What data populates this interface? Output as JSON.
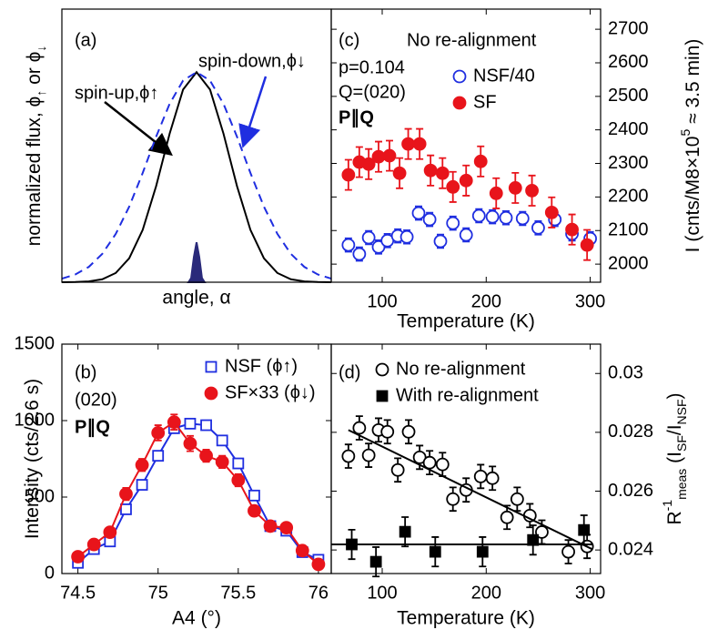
{
  "chart_data": [
    {
      "type": "line",
      "xlabel": "angle, α",
      "ylabel": [
        "normalized flux, ϕ",
        "↑",
        " or ϕ",
        "↓"
      ],
      "ylabel_style": [
        "n",
        "sub",
        "n",
        "sub"
      ],
      "annotations": [
        {
          "text": "(a)"
        },
        {
          "text": "spin-up,ϕ↑"
        },
        {
          "text": "spin-down,ϕ↓"
        }
      ],
      "xlim": [
        -1,
        1
      ],
      "ylim": [
        0,
        1.3
      ],
      "yaxis_side": "left",
      "series": [
        {
          "color": "#000000",
          "line": "solid",
          "marker": "none",
          "x": [
            -1,
            -0.9,
            -0.8,
            -0.7,
            -0.6,
            -0.5,
            -0.4,
            -0.3,
            -0.2,
            -0.1,
            0,
            0.1,
            0.2,
            0.3,
            0.4,
            0.5,
            0.6,
            0.7,
            0.8,
            0.9,
            1
          ],
          "values": [
            0,
            0.001,
            0.004,
            0.014,
            0.044,
            0.114,
            0.249,
            0.458,
            0.707,
            0.917,
            1,
            0.917,
            0.707,
            0.458,
            0.249,
            0.114,
            0.044,
            0.014,
            0.004,
            0.001,
            0
          ]
        },
        {
          "color": "#1f2ee0",
          "line": "dashed",
          "marker": "none",
          "x": [
            -1,
            -0.9,
            -0.8,
            -0.7,
            -0.6,
            -0.5,
            -0.4,
            -0.3,
            -0.2,
            -0.1,
            0,
            0.1,
            0.2,
            0.3,
            0.4,
            0.5,
            0.6,
            0.7,
            0.8,
            0.9,
            1
          ],
          "values": [
            0.017,
            0.037,
            0.073,
            0.135,
            0.23,
            0.36,
            0.52,
            0.693,
            0.849,
            0.96,
            1,
            0.96,
            0.849,
            0.693,
            0.52,
            0.36,
            0.23,
            0.135,
            0.073,
            0.037,
            0.017
          ]
        },
        {
          "color": "#2a2a7a",
          "line": "solid",
          "marker": "none",
          "fill": true,
          "x": [
            -0.06,
            -0.04,
            -0.02,
            0,
            0.02,
            0.04,
            0.06
          ],
          "values": [
            0,
            0.02,
            0.12,
            0.19,
            0.12,
            0.02,
            0
          ]
        }
      ]
    },
    {
      "type": "line",
      "xlabel": "A4 (°)",
      "ylabel": [
        "Intensity (cts/2.6 s)"
      ],
      "ylabel_style": [
        "n"
      ],
      "annotations": [
        {
          "text": "(b)"
        },
        {
          "text": "(020)"
        },
        {
          "text": "P∥Q",
          "bold": true
        }
      ],
      "xlim": [
        74.4,
        76.08
      ],
      "ylim": [
        0,
        1500
      ],
      "xticks": [
        74.5,
        75,
        75.5,
        76
      ],
      "yticks": [
        0,
        500,
        1000,
        1500
      ],
      "yaxis_side": "left",
      "series": [
        {
          "name": "NSF (ϕ↑)",
          "color": "#1f2ee0",
          "line": "solid",
          "marker": "square",
          "filled": false,
          "x": [
            74.5,
            74.6,
            74.7,
            74.8,
            74.9,
            75,
            75.1,
            75.2,
            75.3,
            75.4,
            75.5,
            75.6,
            75.7,
            75.8,
            75.9,
            76
          ],
          "values": [
            70,
            160,
            210,
            420,
            580,
            770,
            950,
            980,
            970,
            870,
            720,
            510,
            310,
            280,
            140,
            90
          ]
        },
        {
          "name": "SF×33 (ϕ↓)",
          "color": "#e8141b",
          "line": "solid",
          "marker": "circle",
          "filled": true,
          "x": [
            74.5,
            74.6,
            74.7,
            74.8,
            74.9,
            75,
            75.1,
            75.2,
            75.3,
            75.4,
            75.5,
            75.6,
            75.7,
            75.8,
            75.9,
            76
          ],
          "values": [
            110,
            190,
            270,
            520,
            710,
            920,
            990,
            850,
            770,
            730,
            610,
            410,
            310,
            300,
            150,
            60
          ],
          "errors": [
            30,
            30,
            30,
            40,
            40,
            50,
            50,
            50,
            40,
            40,
            40,
            30,
            30,
            30,
            30,
            30
          ]
        }
      ]
    },
    {
      "type": "scatter",
      "xlabel": "Temperature (K)",
      "ylabel": [
        "I (cnts/M8×10",
        "5",
        " ≈ 3.5 min)"
      ],
      "ylabel_style": [
        "n",
        "sup",
        "n"
      ],
      "annotations": [
        {
          "text": "(c)"
        },
        {
          "text": "No re-alignment"
        },
        {
          "text": "p=0.104"
        },
        {
          "text": "Q=(020)"
        },
        {
          "text": "P∥Q",
          "bold": true
        }
      ],
      "xlim": [
        51,
        310
      ],
      "ylim": [
        1946,
        2760
      ],
      "xticks": [
        100,
        200,
        300
      ],
      "yticks": [
        2000,
        2100,
        2200,
        2300,
        2400,
        2500,
        2600,
        2700
      ],
      "yaxis_side": "right",
      "series": [
        {
          "name": "NSF/40",
          "color": "#1f2ee0",
          "line": "none",
          "marker": "circle",
          "filled": false,
          "x": [
            67.5,
            78,
            87,
            96.5,
            105,
            115,
            123.7,
            135,
            145.6,
            156,
            168,
            180.7,
            193,
            206,
            219,
            235,
            250,
            266,
            282.5,
            300
          ],
          "values": [
            2057,
            2030,
            2079,
            2051,
            2070,
            2084,
            2081,
            2152,
            2133,
            2068,
            2122,
            2087,
            2144,
            2141,
            2138,
            2136,
            2108,
            2133,
            2090,
            2076
          ],
          "errors": [
            20,
            20,
            20,
            20,
            20,
            20,
            20,
            20,
            20,
            20,
            20,
            20,
            20,
            20,
            20,
            20,
            20,
            20,
            20,
            20
          ]
        },
        {
          "name": "SF",
          "color": "#e8141b",
          "line": "none",
          "marker": "circle",
          "filled": true,
          "x": [
            67.5,
            78,
            87,
            96.5,
            107,
            116.7,
            125,
            136,
            146.5,
            158,
            168,
            180.7,
            194.7,
            209.6,
            228,
            244,
            263,
            282.5,
            297
          ],
          "values": [
            2266,
            2304,
            2298,
            2320,
            2323,
            2271,
            2358,
            2358,
            2279,
            2271,
            2230,
            2249,
            2306,
            2211,
            2227,
            2219,
            2154,
            2103,
            2057
          ],
          "errors": [
            45,
            45,
            45,
            45,
            45,
            45,
            45,
            45,
            45,
            45,
            45,
            45,
            45,
            45,
            45,
            45,
            45,
            45,
            45
          ]
        }
      ]
    },
    {
      "type": "scatter",
      "xlabel": "Temperature (K)",
      "ylabel": [
        "R",
        "-1",
        "meas",
        " (I",
        "SF",
        "/I",
        "NSF",
        ")"
      ],
      "ylabel_style": [
        "n",
        "sup",
        "sub",
        "n",
        "sub",
        "n",
        "sub",
        "n"
      ],
      "annotations": [
        {
          "text": "(d)"
        }
      ],
      "xlim": [
        51,
        310
      ],
      "ylim": [
        0.0232,
        0.031
      ],
      "xticks": [
        100,
        200,
        300
      ],
      "yticks": [
        0.024,
        0.026,
        0.028,
        0.03
      ],
      "yaxis_side": "right",
      "series": [
        {
          "name": "No re-alignment",
          "color": "#000000",
          "line": "none",
          "marker": "circle",
          "filled": false,
          "x": [
            67.5,
            78,
            87,
            96.5,
            105,
            115,
            125.4,
            136,
            145.6,
            158,
            168,
            180.7,
            194.7,
            206,
            220,
            229.8,
            242,
            253.5,
            279,
            297
          ],
          "values": [
            0.02719,
            0.02815,
            0.02722,
            0.02808,
            0.02802,
            0.02672,
            0.02802,
            0.02715,
            0.02697,
            0.02691,
            0.02573,
            0.02604,
            0.0265,
            0.02644,
            0.02511,
            0.02573,
            0.02517,
            0.02461,
            0.02394,
            0.02412
          ],
          "errors": [
            0.0004,
            0.0004,
            0.0004,
            0.0004,
            0.0004,
            0.0004,
            0.0004,
            0.0004,
            0.0004,
            0.0004,
            0.0004,
            0.0004,
            0.0004,
            0.0004,
            0.0004,
            0.0004,
            0.0004,
            0.0004,
            0.0004,
            0.0004
          ]
        },
        {
          "name": "With re-alignment",
          "color": "#000000",
          "line": "none",
          "marker": "square",
          "filled": true,
          "x": [
            70.7,
            94,
            122,
            151,
            196.5,
            245,
            294
          ],
          "values": [
            0.02419,
            0.0236,
            0.02462,
            0.02394,
            0.02394,
            0.02434,
            0.02468
          ],
          "errors": [
            0.0005,
            0.0005,
            0.0005,
            0.0005,
            0.0005,
            0.0005,
            0.0005
          ]
        },
        {
          "color": "#000000",
          "line": "solid",
          "marker": "none",
          "x": [
            67.5,
            301.8
          ],
          "values": [
            0.02808,
            0.02403
          ]
        },
        {
          "color": "#000000",
          "line": "solid",
          "marker": "none",
          "x": [
            51,
            302
          ],
          "values": [
            0.02419,
            0.02419
          ]
        }
      ]
    }
  ]
}
